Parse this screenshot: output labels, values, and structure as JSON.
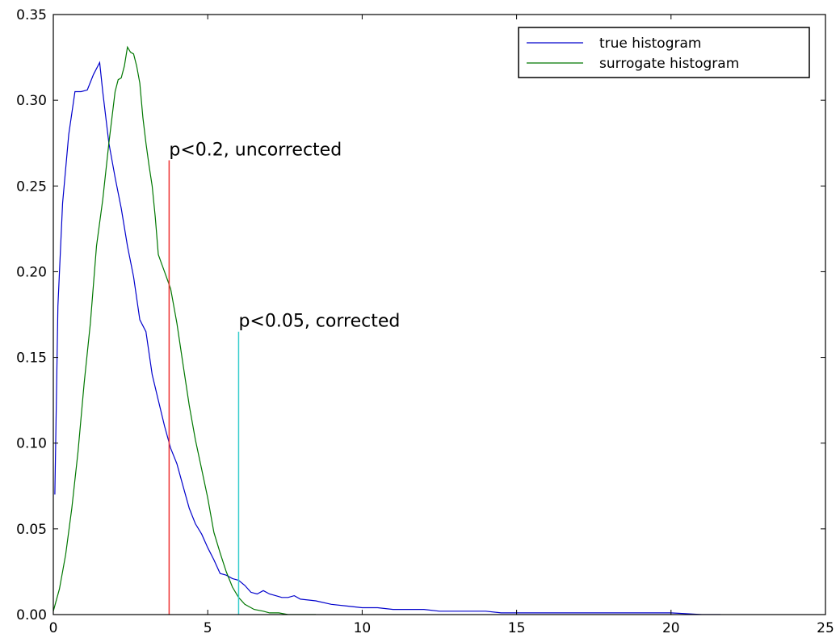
{
  "chart_data": {
    "type": "line",
    "title": "",
    "xlabel": "",
    "ylabel": "",
    "xlim": [
      0,
      25
    ],
    "ylim": [
      0,
      0.35
    ],
    "x_ticks": [
      0,
      5,
      10,
      15,
      20,
      25
    ],
    "y_ticks": [
      0.0,
      0.05,
      0.1,
      0.15,
      0.2,
      0.25,
      0.3,
      0.35
    ],
    "x_tick_labels": [
      "0",
      "5",
      "10",
      "15",
      "20",
      "25"
    ],
    "y_tick_labels": [
      "0.00",
      "0.05",
      "0.10",
      "0.15",
      "0.20",
      "0.25",
      "0.30",
      "0.35"
    ],
    "grid": false,
    "legend_position": "top-right",
    "series": [
      {
        "name": "true histogram",
        "color": "#0000cc",
        "x": [
          0.05,
          0.15,
          0.3,
          0.5,
          0.7,
          0.9,
          1.1,
          1.3,
          1.5,
          1.6,
          1.8,
          2.0,
          2.2,
          2.4,
          2.6,
          2.8,
          3.0,
          3.2,
          3.4,
          3.6,
          3.8,
          4.0,
          4.2,
          4.4,
          4.6,
          4.8,
          5.0,
          5.2,
          5.4,
          5.6,
          5.8,
          6.0,
          6.2,
          6.4,
          6.6,
          6.8,
          7.0,
          7.2,
          7.4,
          7.6,
          7.8,
          8.0,
          8.5,
          9.0,
          9.5,
          10.0,
          10.5,
          11.0,
          11.5,
          12.0,
          12.5,
          13.0,
          13.5,
          14.0,
          14.5,
          15.0,
          16.0,
          17.0,
          18.0,
          19.0,
          20.0,
          21.0,
          21.6
        ],
        "y": [
          0.07,
          0.18,
          0.24,
          0.28,
          0.305,
          0.305,
          0.306,
          0.315,
          0.322,
          0.305,
          0.275,
          0.255,
          0.237,
          0.215,
          0.197,
          0.172,
          0.165,
          0.14,
          0.125,
          0.11,
          0.097,
          0.088,
          0.075,
          0.062,
          0.053,
          0.047,
          0.039,
          0.032,
          0.024,
          0.023,
          0.021,
          0.02,
          0.017,
          0.013,
          0.012,
          0.014,
          0.012,
          0.011,
          0.01,
          0.01,
          0.011,
          0.009,
          0.008,
          0.006,
          0.005,
          0.004,
          0.004,
          0.003,
          0.003,
          0.003,
          0.002,
          0.002,
          0.002,
          0.002,
          0.001,
          0.001,
          0.001,
          0.001,
          0.001,
          0.001,
          0.001,
          0.0,
          0.0
        ]
      },
      {
        "name": "surrogate histogram",
        "color": "#007700",
        "x": [
          0.0,
          0.2,
          0.4,
          0.6,
          0.8,
          1.0,
          1.2,
          1.4,
          1.6,
          1.8,
          2.0,
          2.1,
          2.2,
          2.3,
          2.4,
          2.5,
          2.6,
          2.7,
          2.8,
          2.9,
          3.0,
          3.1,
          3.2,
          3.3,
          3.4,
          3.5,
          3.6,
          3.7,
          3.8,
          4.0,
          4.2,
          4.4,
          4.6,
          4.8,
          5.0,
          5.2,
          5.4,
          5.6,
          5.8,
          6.0,
          6.2,
          6.5,
          6.8,
          7.0,
          7.3,
          7.6,
          8.0,
          8.5
        ],
        "y": [
          0.002,
          0.015,
          0.035,
          0.062,
          0.095,
          0.135,
          0.17,
          0.215,
          0.242,
          0.275,
          0.305,
          0.312,
          0.313,
          0.32,
          0.331,
          0.328,
          0.327,
          0.32,
          0.31,
          0.29,
          0.275,
          0.262,
          0.25,
          0.232,
          0.21,
          0.205,
          0.2,
          0.195,
          0.19,
          0.17,
          0.146,
          0.122,
          0.102,
          0.085,
          0.068,
          0.048,
          0.036,
          0.025,
          0.016,
          0.01,
          0.006,
          0.003,
          0.002,
          0.001,
          0.001,
          0.0,
          0.0,
          0.0
        ]
      }
    ],
    "vlines": [
      {
        "x": 3.75,
        "ymax": 0.265,
        "color": "#ee3333",
        "label": "p<0.2, uncorrected"
      },
      {
        "x": 6.0,
        "ymax": 0.165,
        "color": "#33cccc",
        "label": "p<0.05, corrected"
      }
    ]
  }
}
